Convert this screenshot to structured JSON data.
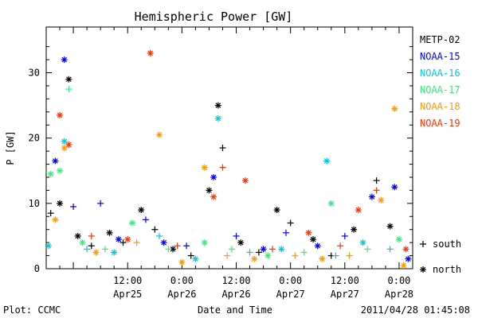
{
  "chart_data": {
    "type": "scatter",
    "title": "Hemispheric Power [GW]",
    "ylabel": "P [GW]",
    "xlabel": "Date and Time",
    "ylim": [
      0,
      37
    ],
    "yticks": [
      0,
      10,
      20,
      30
    ],
    "xlim": [
      "2011-04-24T18:00",
      "2011-04-28T03:00"
    ],
    "xticks": [
      {
        "value": "2011-04-25T12:00",
        "time": "12:00",
        "day": "Apr25"
      },
      {
        "value": "2011-04-26T00:00",
        "time": "0:00",
        "day": "Apr26"
      },
      {
        "value": "2011-04-26T12:00",
        "time": "12:00",
        "day": "Apr26"
      },
      {
        "value": "2011-04-27T00:00",
        "time": "0:00",
        "day": "Apr27"
      },
      {
        "value": "2011-04-27T12:00",
        "time": "12:00",
        "day": "Apr27"
      },
      {
        "value": "2011-04-28T00:00",
        "time": "0:00",
        "day": "Apr28"
      }
    ],
    "grid": false,
    "legend_position": "right",
    "marker_key": [
      {
        "symbol": "+",
        "label": "south"
      },
      {
        "symbol": "*",
        "label": "north"
      }
    ],
    "series": [
      {
        "name": "METP-02",
        "color": "#000000",
        "points": [
          {
            "x": "2011-04-24T19:00",
            "y": 8.5,
            "m": "+"
          },
          {
            "x": "2011-04-24T21:00",
            "y": 10.0,
            "m": "*"
          },
          {
            "x": "2011-04-24T23:00",
            "y": 29.0,
            "m": "*"
          },
          {
            "x": "2011-04-25T01:00",
            "y": 5.0,
            "m": "*"
          },
          {
            "x": "2011-04-25T04:00",
            "y": 3.5,
            "m": "+"
          },
          {
            "x": "2011-04-25T08:00",
            "y": 5.5,
            "m": "*"
          },
          {
            "x": "2011-04-25T11:00",
            "y": 4.0,
            "m": "+"
          },
          {
            "x": "2011-04-25T15:00",
            "y": 9.0,
            "m": "*"
          },
          {
            "x": "2011-04-25T18:00",
            "y": 6.0,
            "m": "+"
          },
          {
            "x": "2011-04-25T22:00",
            "y": 3.0,
            "m": "*"
          },
          {
            "x": "2011-04-26T02:00",
            "y": 2.0,
            "m": "+"
          },
          {
            "x": "2011-04-26T06:00",
            "y": 12.0,
            "m": "*"
          },
          {
            "x": "2011-04-26T08:00",
            "y": 25.0,
            "m": "*"
          },
          {
            "x": "2011-04-26T09:00",
            "y": 18.5,
            "m": "+"
          },
          {
            "x": "2011-04-26T13:00",
            "y": 4.0,
            "m": "*"
          },
          {
            "x": "2011-04-26T17:00",
            "y": 2.5,
            "m": "+"
          },
          {
            "x": "2011-04-26T21:00",
            "y": 9.0,
            "m": "*"
          },
          {
            "x": "2011-04-27T00:00",
            "y": 7.0,
            "m": "+"
          },
          {
            "x": "2011-04-27T05:00",
            "y": 4.5,
            "m": "*"
          },
          {
            "x": "2011-04-27T09:00",
            "y": 2.0,
            "m": "+"
          },
          {
            "x": "2011-04-27T14:00",
            "y": 6.0,
            "m": "*"
          },
          {
            "x": "2011-04-27T19:00",
            "y": 13.5,
            "m": "+"
          },
          {
            "x": "2011-04-27T22:00",
            "y": 6.5,
            "m": "*"
          }
        ]
      },
      {
        "name": "NOAA-15",
        "color": "#0000ff",
        "points": [
          {
            "x": "2011-04-24T20:00",
            "y": 16.5,
            "m": "*"
          },
          {
            "x": "2011-04-24T22:00",
            "y": 32.0,
            "m": "*"
          },
          {
            "x": "2011-04-25T00:00",
            "y": 9.5,
            "m": "+"
          },
          {
            "x": "2011-04-25T06:00",
            "y": 10.0,
            "m": "+"
          },
          {
            "x": "2011-04-25T10:00",
            "y": 4.5,
            "m": "*"
          },
          {
            "x": "2011-04-25T16:00",
            "y": 7.5,
            "m": "+"
          },
          {
            "x": "2011-04-25T20:00",
            "y": 4.0,
            "m": "*"
          },
          {
            "x": "2011-04-26T01:00",
            "y": 3.5,
            "m": "+"
          },
          {
            "x": "2011-04-26T07:00",
            "y": 14.0,
            "m": "*"
          },
          {
            "x": "2011-04-26T12:00",
            "y": 5.0,
            "m": "+"
          },
          {
            "x": "2011-04-26T18:00",
            "y": 3.0,
            "m": "*"
          },
          {
            "x": "2011-04-26T23:00",
            "y": 5.5,
            "m": "+"
          },
          {
            "x": "2011-04-27T06:00",
            "y": 3.5,
            "m": "*"
          },
          {
            "x": "2011-04-27T12:00",
            "y": 5.0,
            "m": "+"
          },
          {
            "x": "2011-04-27T18:00",
            "y": 11.0,
            "m": "*"
          },
          {
            "x": "2011-04-27T23:00",
            "y": 12.5,
            "m": "*"
          },
          {
            "x": "2011-04-28T02:00",
            "y": 1.5,
            "m": "*"
          }
        ]
      },
      {
        "name": "NOAA-16",
        "color": "#00c8e6",
        "points": [
          {
            "x": "2011-04-24T18:30",
            "y": 3.5,
            "m": "*"
          },
          {
            "x": "2011-04-24T22:00",
            "y": 19.5,
            "m": "*"
          },
          {
            "x": "2011-04-25T03:00",
            "y": 3.0,
            "m": "+"
          },
          {
            "x": "2011-04-25T09:00",
            "y": 2.5,
            "m": "*"
          },
          {
            "x": "2011-04-25T19:00",
            "y": 5.0,
            "m": "+"
          },
          {
            "x": "2011-04-26T03:00",
            "y": 1.5,
            "m": "*"
          },
          {
            "x": "2011-04-26T08:00",
            "y": 23.0,
            "m": "*"
          },
          {
            "x": "2011-04-26T15:00",
            "y": 2.5,
            "m": "+"
          },
          {
            "x": "2011-04-26T22:00",
            "y": 3.0,
            "m": "*"
          },
          {
            "x": "2011-04-27T08:00",
            "y": 16.5,
            "m": "*"
          },
          {
            "x": "2011-04-27T10:00",
            "y": 2.0,
            "m": "+"
          },
          {
            "x": "2011-04-27T16:00",
            "y": 4.0,
            "m": "*"
          },
          {
            "x": "2011-04-27T22:00",
            "y": 3.0,
            "m": "+"
          }
        ]
      },
      {
        "name": "NOAA-17",
        "color": "#33ee77",
        "points": [
          {
            "x": "2011-04-24T19:00",
            "y": 14.5,
            "m": "*"
          },
          {
            "x": "2011-04-24T21:00",
            "y": 15.0,
            "m": "*"
          },
          {
            "x": "2011-04-24T23:00",
            "y": 27.5,
            "m": "+"
          },
          {
            "x": "2011-04-25T02:00",
            "y": 4.0,
            "m": "*"
          },
          {
            "x": "2011-04-25T07:00",
            "y": 3.0,
            "m": "+"
          },
          {
            "x": "2011-04-25T13:00",
            "y": 7.0,
            "m": "*"
          },
          {
            "x": "2011-04-25T21:00",
            "y": 3.0,
            "m": "+"
          },
          {
            "x": "2011-04-26T05:00",
            "y": 4.0,
            "m": "*"
          },
          {
            "x": "2011-04-26T11:00",
            "y": 3.0,
            "m": "+"
          },
          {
            "x": "2011-04-26T19:00",
            "y": 2.0,
            "m": "*"
          },
          {
            "x": "2011-04-27T03:00",
            "y": 2.5,
            "m": "+"
          },
          {
            "x": "2011-04-27T09:00",
            "y": 10.0,
            "m": "*"
          },
          {
            "x": "2011-04-27T17:00",
            "y": 3.0,
            "m": "+"
          },
          {
            "x": "2011-04-28T00:00",
            "y": 4.5,
            "m": "*"
          }
        ]
      },
      {
        "name": "NOAA-18",
        "color": "#ff9900",
        "points": [
          {
            "x": "2011-04-24T20:00",
            "y": 7.5,
            "m": "*"
          },
          {
            "x": "2011-04-24T22:00",
            "y": 18.5,
            "m": "*"
          },
          {
            "x": "2011-04-25T05:00",
            "y": 2.5,
            "m": "*"
          },
          {
            "x": "2011-04-25T14:00",
            "y": 4.0,
            "m": "+"
          },
          {
            "x": "2011-04-25T19:00",
            "y": 20.5,
            "m": "*"
          },
          {
            "x": "2011-04-26T00:00",
            "y": 1.0,
            "m": "*"
          },
          {
            "x": "2011-04-26T05:00",
            "y": 15.5,
            "m": "*"
          },
          {
            "x": "2011-04-26T10:00",
            "y": 2.0,
            "m": "+"
          },
          {
            "x": "2011-04-26T16:00",
            "y": 1.5,
            "m": "*"
          },
          {
            "x": "2011-04-27T01:00",
            "y": 2.0,
            "m": "+"
          },
          {
            "x": "2011-04-27T07:00",
            "y": 1.5,
            "m": "*"
          },
          {
            "x": "2011-04-27T13:00",
            "y": 2.0,
            "m": "+"
          },
          {
            "x": "2011-04-27T20:00",
            "y": 10.5,
            "m": "*"
          },
          {
            "x": "2011-04-27T23:00",
            "y": 24.5,
            "m": "*"
          },
          {
            "x": "2011-04-28T01:00",
            "y": 0.5,
            "m": "*"
          }
        ]
      },
      {
        "name": "NOAA-19",
        "color": "#ff3300",
        "points": [
          {
            "x": "2011-04-24T21:00",
            "y": 23.5,
            "m": "*"
          },
          {
            "x": "2011-04-24T23:00",
            "y": 19.0,
            "m": "*"
          },
          {
            "x": "2011-04-25T04:00",
            "y": 5.0,
            "m": "+"
          },
          {
            "x": "2011-04-25T12:00",
            "y": 4.5,
            "m": "*"
          },
          {
            "x": "2011-04-25T17:00",
            "y": 33.0,
            "m": "*"
          },
          {
            "x": "2011-04-25T23:00",
            "y": 3.5,
            "m": "+"
          },
          {
            "x": "2011-04-26T07:00",
            "y": 11.0,
            "m": "*"
          },
          {
            "x": "2011-04-26T09:00",
            "y": 15.5,
            "m": "+"
          },
          {
            "x": "2011-04-26T14:00",
            "y": 13.5,
            "m": "*"
          },
          {
            "x": "2011-04-26T20:00",
            "y": 3.0,
            "m": "+"
          },
          {
            "x": "2011-04-27T04:00",
            "y": 5.5,
            "m": "*"
          },
          {
            "x": "2011-04-27T11:00",
            "y": 3.5,
            "m": "+"
          },
          {
            "x": "2011-04-27T15:00",
            "y": 9.0,
            "m": "*"
          },
          {
            "x": "2011-04-27T19:00",
            "y": 12.0,
            "m": "+"
          },
          {
            "x": "2011-04-28T01:30",
            "y": 3.0,
            "m": "*"
          }
        ]
      }
    ]
  },
  "footer": {
    "left": "Plot: CCMC",
    "right": "2011/04/28 01:45:08"
  }
}
